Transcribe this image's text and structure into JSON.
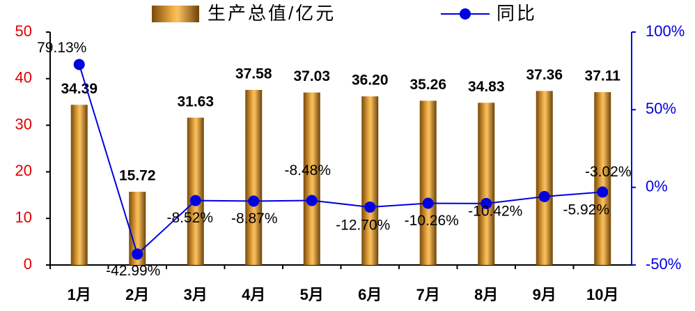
{
  "chart_data": {
    "type": "bar-line",
    "categories": [
      "1月",
      "2月",
      "3月",
      "4月",
      "5月",
      "6月",
      "7月",
      "8月",
      "9月",
      "10月"
    ],
    "series": [
      {
        "name": "生产总值/亿元",
        "type": "bar",
        "color": "#d08a1c",
        "values": [
          34.39,
          15.72,
          31.63,
          37.58,
          37.03,
          36.2,
          35.26,
          34.83,
          37.36,
          37.11
        ],
        "value_labels": [
          "34.39",
          "15.72",
          "31.63",
          "37.58",
          "37.03",
          "36.20",
          "35.26",
          "34.83",
          "37.36",
          "37.11"
        ]
      },
      {
        "name": "同比",
        "type": "line",
        "axis": "y2",
        "color": "#0000e0",
        "values": [
          79.13,
          -42.99,
          -8.52,
          -8.87,
          -8.48,
          -12.7,
          -10.26,
          -10.42,
          -5.92,
          -3.02
        ],
        "value_labels": [
          "79.13%",
          "-42.99%",
          "-8.52%",
          "-8.87%",
          "-8.48%",
          "-12.70%",
          "-10.26%",
          "-10.42%",
          "-5.92%",
          "-3.02%"
        ]
      }
    ],
    "ylim": [
      0,
      50
    ],
    "yticks": [
      0,
      10,
      20,
      30,
      40,
      50
    ],
    "ytick_color": "#e00000",
    "y2lim": [
      -50,
      100
    ],
    "y2ticks": [
      {
        "value": -50,
        "label": "-50%"
      },
      {
        "value": 0,
        "label": "0%"
      },
      {
        "value": 50,
        "label": "50%"
      },
      {
        "value": 100,
        "label": "100%"
      }
    ],
    "y2tick_color": "#0000e0",
    "legend": "top"
  }
}
